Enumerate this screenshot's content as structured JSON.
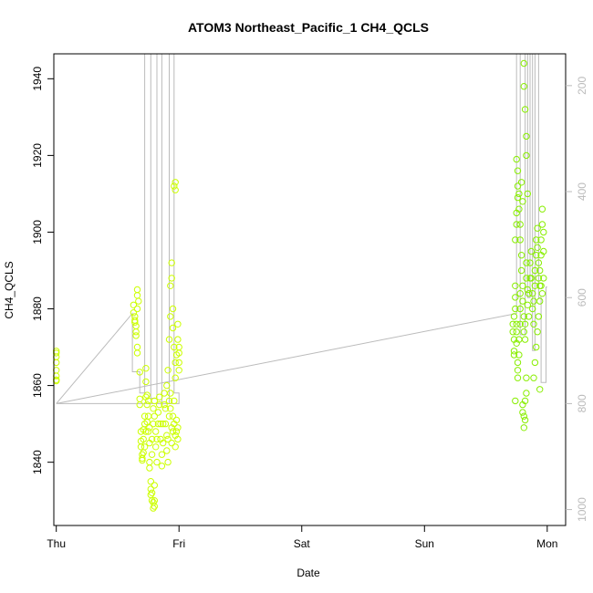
{
  "chart_data": {
    "type": "scatter",
    "title": "ATOM3 Northeast_Pacific_1 CH4_QCLS",
    "xlabel": "Date",
    "ylabel": "CH4_QCLS",
    "xlim": [
      -0.02,
      4.15
    ],
    "ylim": [
      1823.5,
      1946.5
    ],
    "x_ticks": [
      {
        "v": 0,
        "label": "Thu"
      },
      {
        "v": 1,
        "label": "Fri"
      },
      {
        "v": 2,
        "label": "Sat"
      },
      {
        "v": 3,
        "label": "Sun"
      },
      {
        "v": 4,
        "label": "Mon"
      }
    ],
    "y_ticks": [
      1840,
      1860,
      1880,
      1900,
      1920,
      1940
    ],
    "right_axis": {
      "label": "",
      "lim": [
        1030,
        140
      ],
      "ticks": [
        200,
        400,
        600,
        800,
        1000
      ]
    },
    "colors": {
      "points_early": "#ccff00",
      "points_late": "#88ee00",
      "pressure_line": "#bbbbbb"
    },
    "series": [
      {
        "values": [
          [
            0.0,
            1861.5
          ],
          [
            0.0,
            1862.5
          ],
          [
            0.0,
            1864
          ],
          [
            0.0,
            1866
          ],
          [
            0.0,
            1867.5
          ],
          [
            0.0,
            1869
          ],
          [
            0.0,
            1868.5
          ],
          [
            0.0,
            1861.2
          ],
          [
            0.63,
            1881
          ],
          [
            0.63,
            1879
          ],
          [
            0.64,
            1877
          ],
          [
            0.64,
            1876.5
          ],
          [
            0.64,
            1878
          ],
          [
            0.65,
            1875.5
          ],
          [
            0.65,
            1874
          ],
          [
            0.66,
            1870
          ],
          [
            0.66,
            1868.5
          ],
          [
            0.65,
            1873
          ],
          [
            0.66,
            1883.5
          ],
          [
            0.66,
            1885
          ],
          [
            0.67,
            1882
          ],
          [
            0.66,
            1880
          ],
          [
            0.68,
            1855
          ],
          [
            0.68,
            1856.5
          ],
          [
            0.68,
            1863.5
          ],
          [
            0.69,
            1848
          ],
          [
            0.69,
            1845.5
          ],
          [
            0.69,
            1844
          ],
          [
            0.7,
            1842
          ],
          [
            0.7,
            1841
          ],
          [
            0.7,
            1840.5
          ],
          [
            0.71,
            1842.5
          ],
          [
            0.71,
            1846
          ],
          [
            0.71,
            1848.5
          ],
          [
            0.72,
            1844
          ],
          [
            0.72,
            1850
          ],
          [
            0.72,
            1852
          ],
          [
            0.73,
            1848
          ],
          [
            0.73,
            1857
          ],
          [
            0.73,
            1861
          ],
          [
            0.73,
            1864.5
          ],
          [
            0.74,
            1850.5
          ],
          [
            0.74,
            1855
          ],
          [
            0.74,
            1857.5
          ],
          [
            0.75,
            1856
          ],
          [
            0.75,
            1852
          ],
          [
            0.75,
            1848
          ],
          [
            0.76,
            1849
          ],
          [
            0.76,
            1845
          ],
          [
            0.76,
            1840
          ],
          [
            0.76,
            1838.5
          ],
          [
            0.77,
            1835
          ],
          [
            0.77,
            1833
          ],
          [
            0.77,
            1831.5
          ],
          [
            0.78,
            1832
          ],
          [
            0.78,
            1830
          ],
          [
            0.79,
            1828
          ],
          [
            0.79,
            1829.5
          ],
          [
            0.8,
            1830
          ],
          [
            0.8,
            1828.5
          ],
          [
            0.8,
            1834
          ],
          [
            0.78,
            1842
          ],
          [
            0.78,
            1846
          ],
          [
            0.79,
            1850
          ],
          [
            0.79,
            1854
          ],
          [
            0.8,
            1856
          ],
          [
            0.8,
            1852
          ],
          [
            0.81,
            1848
          ],
          [
            0.81,
            1844
          ],
          [
            0.82,
            1840
          ],
          [
            0.82,
            1846
          ],
          [
            0.83,
            1850
          ],
          [
            0.83,
            1853
          ],
          [
            0.84,
            1857
          ],
          [
            0.84,
            1855
          ],
          [
            0.85,
            1850
          ],
          [
            0.85,
            1846
          ],
          [
            0.86,
            1842
          ],
          [
            0.86,
            1839
          ],
          [
            0.87,
            1845
          ],
          [
            0.87,
            1850
          ],
          [
            0.88,
            1855
          ],
          [
            0.88,
            1858
          ],
          [
            0.89,
            1854
          ],
          [
            0.89,
            1850
          ],
          [
            0.9,
            1847
          ],
          [
            0.9,
            1843
          ],
          [
            0.91,
            1840
          ],
          [
            0.91,
            1846
          ],
          [
            0.92,
            1852
          ],
          [
            0.92,
            1856
          ],
          [
            0.93,
            1858
          ],
          [
            0.93,
            1854
          ],
          [
            0.94,
            1849
          ],
          [
            0.94,
            1845
          ],
          [
            0.95,
            1848
          ],
          [
            0.95,
            1852
          ],
          [
            0.96,
            1856
          ],
          [
            0.96,
            1850
          ],
          [
            0.97,
            1847
          ],
          [
            0.97,
            1844
          ],
          [
            0.98,
            1848
          ],
          [
            0.98,
            1851
          ],
          [
            0.99,
            1846
          ],
          [
            0.99,
            1849
          ],
          [
            0.9,
            1860
          ],
          [
            0.91,
            1864
          ],
          [
            0.92,
            1872
          ],
          [
            0.93,
            1878
          ],
          [
            0.93,
            1886
          ],
          [
            0.94,
            1892
          ],
          [
            0.94,
            1888
          ],
          [
            0.95,
            1880
          ],
          [
            0.95,
            1875
          ],
          [
            0.96,
            1870
          ],
          [
            0.97,
            1866
          ],
          [
            0.97,
            1862
          ],
          [
            0.98,
            1868
          ],
          [
            0.99,
            1872
          ],
          [
            0.99,
            1876
          ],
          [
            1.0,
            1870
          ],
          [
            1.0,
            1866
          ],
          [
            1.0,
            1864
          ],
          [
            1.0,
            1868.5
          ],
          [
            0.96,
            1912
          ],
          [
            0.97,
            1913
          ],
          [
            0.97,
            1911
          ]
        ]
      },
      {
        "values": [
          [
            3.72,
            1876
          ],
          [
            3.72,
            1874
          ],
          [
            3.73,
            1872
          ],
          [
            3.73,
            1869
          ],
          [
            3.73,
            1868
          ],
          [
            3.73,
            1878
          ],
          [
            3.74,
            1880
          ],
          [
            3.74,
            1883
          ],
          [
            3.74,
            1886
          ],
          [
            3.75,
            1876
          ],
          [
            3.75,
            1874
          ],
          [
            3.75,
            1871
          ],
          [
            3.76,
            1866
          ],
          [
            3.76,
            1864
          ],
          [
            3.76,
            1862
          ],
          [
            3.77,
            1868
          ],
          [
            3.77,
            1872
          ],
          [
            3.78,
            1876
          ],
          [
            3.78,
            1880
          ],
          [
            3.78,
            1884
          ],
          [
            3.74,
            1856
          ],
          [
            3.74,
            1898
          ],
          [
            3.75,
            1902
          ],
          [
            3.75,
            1905
          ],
          [
            3.76,
            1909
          ],
          [
            3.76,
            1912
          ],
          [
            3.75,
            1919
          ],
          [
            3.76,
            1916
          ],
          [
            3.77,
            1910
          ],
          [
            3.77,
            1906
          ],
          [
            3.78,
            1902
          ],
          [
            3.78,
            1898
          ],
          [
            3.79,
            1894
          ],
          [
            3.79,
            1890
          ],
          [
            3.8,
            1886
          ],
          [
            3.8,
            1882
          ],
          [
            3.81,
            1878
          ],
          [
            3.81,
            1874
          ],
          [
            3.82,
            1872
          ],
          [
            3.82,
            1876
          ],
          [
            3.8,
            1855
          ],
          [
            3.8,
            1853
          ],
          [
            3.81,
            1852
          ],
          [
            3.81,
            1849
          ],
          [
            3.82,
            1851
          ],
          [
            3.82,
            1856
          ],
          [
            3.83,
            1862
          ],
          [
            3.83,
            1858
          ],
          [
            3.79,
            1913
          ],
          [
            3.8,
            1908
          ],
          [
            3.81,
            1938
          ],
          [
            3.81,
            1944
          ],
          [
            3.82,
            1932
          ],
          [
            3.83,
            1925
          ],
          [
            3.83,
            1920
          ],
          [
            3.84,
            1910
          ],
          [
            3.83,
            1892
          ],
          [
            3.83,
            1888
          ],
          [
            3.84,
            1885
          ],
          [
            3.84,
            1881
          ],
          [
            3.85,
            1878
          ],
          [
            3.85,
            1884
          ],
          [
            3.86,
            1888
          ],
          [
            3.86,
            1892
          ],
          [
            3.87,
            1895
          ],
          [
            3.87,
            1888
          ],
          [
            3.88,
            1884
          ],
          [
            3.88,
            1880
          ],
          [
            3.89,
            1876
          ],
          [
            3.89,
            1882
          ],
          [
            3.9,
            1886
          ],
          [
            3.9,
            1890
          ],
          [
            3.91,
            1894
          ],
          [
            3.91,
            1898
          ],
          [
            3.92,
            1901
          ],
          [
            3.92,
            1896
          ],
          [
            3.93,
            1892
          ],
          [
            3.93,
            1888
          ],
          [
            3.94,
            1886
          ],
          [
            3.94,
            1890
          ],
          [
            3.95,
            1894
          ],
          [
            3.95,
            1898
          ],
          [
            3.96,
            1902
          ],
          [
            3.96,
            1906
          ],
          [
            3.97,
            1900
          ],
          [
            3.97,
            1895
          ],
          [
            3.94,
            1859
          ],
          [
            3.89,
            1862
          ],
          [
            3.9,
            1866
          ],
          [
            3.91,
            1870
          ],
          [
            3.92,
            1874
          ],
          [
            3.93,
            1878
          ],
          [
            3.94,
            1882
          ],
          [
            3.95,
            1886
          ],
          [
            3.96,
            1884
          ],
          [
            3.97,
            1888
          ]
        ]
      },
      {
        "name": "",
        "values": [
          [
            0.0,
            800
          ],
          [
            0.62,
            630
          ],
          [
            0.62,
            740
          ],
          [
            0.68,
            740
          ],
          [
            0.68,
            780
          ],
          [
            0.72,
            780
          ],
          [
            0.72,
            140
          ],
          [
            0.77,
            140
          ],
          [
            0.77,
            790
          ],
          [
            0.82,
            790
          ],
          [
            0.82,
            140
          ],
          [
            0.86,
            140
          ],
          [
            0.86,
            800
          ],
          [
            0.92,
            800
          ],
          [
            0.92,
            140
          ],
          [
            0.96,
            140
          ],
          [
            0.96,
            780
          ],
          [
            1.0,
            780
          ],
          [
            1.0,
            800
          ],
          [
            0.0,
            800
          ],
          [
            0.0,
            800
          ],
          [
            3.75,
            630
          ],
          [
            3.75,
            140
          ],
          [
            3.78,
            140
          ],
          [
            3.78,
            670
          ],
          [
            3.82,
            670
          ],
          [
            3.82,
            140
          ],
          [
            3.84,
            140
          ],
          [
            3.84,
            600
          ],
          [
            3.86,
            600
          ],
          [
            3.86,
            140
          ],
          [
            3.88,
            140
          ],
          [
            3.88,
            700
          ],
          [
            3.9,
            700
          ],
          [
            3.9,
            140
          ],
          [
            3.93,
            140
          ],
          [
            3.93,
            600
          ],
          [
            3.95,
            600
          ],
          [
            3.95,
            760
          ],
          [
            3.99,
            760
          ],
          [
            3.99,
            580
          ],
          [
            4.0,
            580
          ]
        ]
      }
    ]
  }
}
